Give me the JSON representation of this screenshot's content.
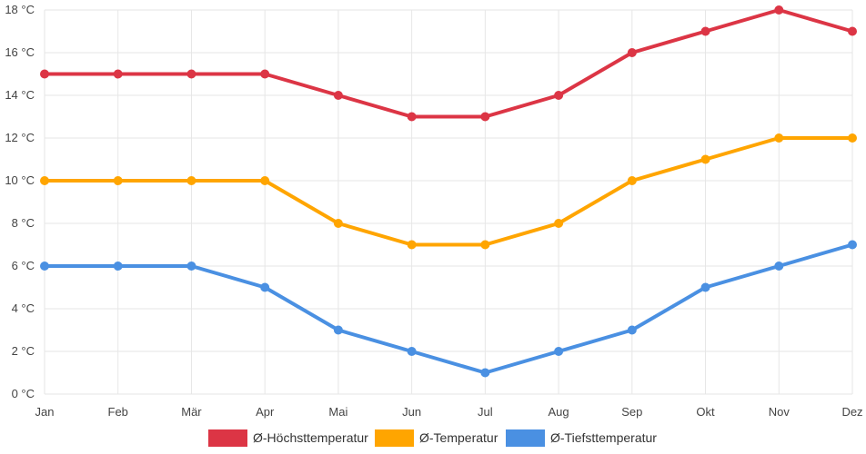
{
  "chart_data": {
    "type": "line",
    "title": "",
    "xlabel": "",
    "ylabel": "",
    "categories": [
      "Jan",
      "Feb",
      "Mär",
      "Apr",
      "Mai",
      "Jun",
      "Jul",
      "Aug",
      "Sep",
      "Okt",
      "Nov",
      "Dez"
    ],
    "ylim": [
      0,
      18
    ],
    "ytick_step": 2,
    "ytick_suffix": " °C",
    "ytick_labels": [
      "0 °C",
      "2 °C",
      "4 °C",
      "6 °C",
      "8 °C",
      "10 °C",
      "12 °C",
      "14 °C",
      "16 °C",
      "18 °C"
    ],
    "grid": true,
    "legend_position": "bottom-center",
    "series": [
      {
        "name": "Ø-Höchsttemperatur",
        "color": "#dc3545",
        "values": [
          15,
          15,
          15,
          15,
          14,
          13,
          13,
          14,
          16,
          17,
          18,
          17
        ]
      },
      {
        "name": "Ø-Temperatur",
        "color": "#ffa500",
        "values": [
          10,
          10,
          10,
          10,
          8,
          7,
          7,
          8,
          10,
          11,
          12,
          12
        ]
      },
      {
        "name": "Ø-Tiefsttemperatur",
        "color": "#4a90e2",
        "values": [
          6,
          6,
          6,
          5,
          3,
          2,
          1,
          2,
          3,
          5,
          6,
          7
        ]
      }
    ]
  }
}
